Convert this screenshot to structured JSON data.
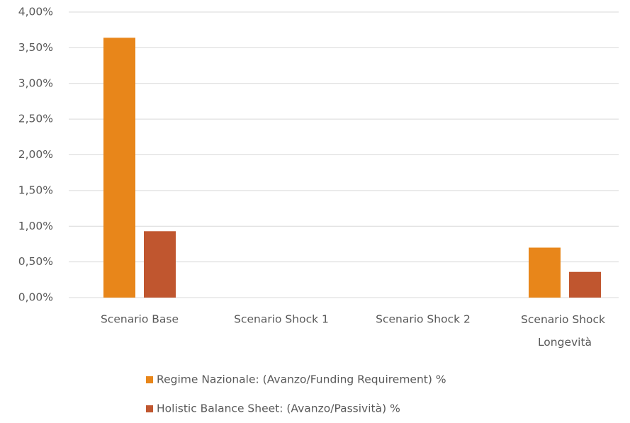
{
  "chart_data": {
    "type": "bar",
    "categories": [
      "Scenario Base",
      "Scenario Shock 1",
      "Scenario Shock 2",
      "Scenario Shock Longevità"
    ],
    "series": [
      {
        "name": "Regime Nazionale: (Avanzo/Funding Requirement) %",
        "color": "#e8861a",
        "values": [
          3.64,
          null,
          null,
          0.7
        ]
      },
      {
        "name": "Holistic Balance Sheet: (Avanzo/Passività) %",
        "color": "#c0562f",
        "values": [
          0.93,
          null,
          null,
          0.36
        ]
      }
    ],
    "ylim": [
      0,
      4
    ],
    "yticks": [
      {
        "value": 0,
        "label": "0,00%"
      },
      {
        "value": 0.5,
        "label": "0,50%"
      },
      {
        "value": 1,
        "label": "1,00%"
      },
      {
        "value": 1.5,
        "label": "1,50%"
      },
      {
        "value": 2,
        "label": "2,00%"
      },
      {
        "value": 2.5,
        "label": "2,50%"
      },
      {
        "value": 3,
        "label": "3,00%"
      },
      {
        "value": 3.5,
        "label": "3,50%"
      },
      {
        "value": 4,
        "label": "4,00%"
      }
    ],
    "grid": true,
    "legend": "bottom"
  }
}
